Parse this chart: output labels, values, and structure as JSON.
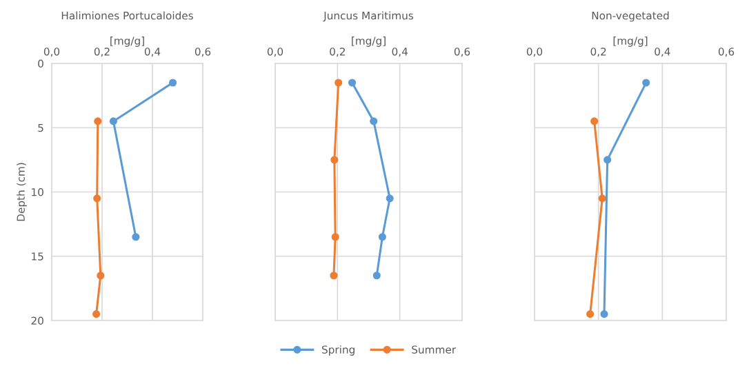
{
  "chart_data": [
    {
      "type": "line",
      "title": "Halimiones Portucaloides",
      "xlabel": "[mg/g]",
      "ylabel": "Depth (cm)",
      "xlim": [
        0,
        0.6
      ],
      "xticks": [
        {
          "value": 0,
          "label": "0,0"
        },
        {
          "value": 0.2,
          "label": "0,2"
        },
        {
          "value": 0.4,
          "label": "0,4"
        },
        {
          "value": 0.6,
          "label": "0,6"
        }
      ],
      "ylim": [
        20,
        0
      ],
      "yticks": [
        0,
        5,
        10,
        15,
        20
      ],
      "grid": true,
      "marker": "circle",
      "line_style": "solid",
      "series": [
        {
          "color": "#5b9bd5",
          "x": [
            0.481,
            0.245,
            0.334
          ],
          "values": [
            1.5,
            4.5,
            13.5
          ]
        },
        {
          "color": "#ed7d31",
          "x": [
            0.183,
            0.18,
            0.194,
            0.177
          ],
          "values": [
            4.5,
            10.5,
            16.5,
            19.5
          ]
        }
      ]
    },
    {
      "type": "line",
      "title": "Juncus Maritimus",
      "xlabel": "[mg/g]",
      "xlim": [
        0,
        0.6
      ],
      "xticks": [
        {
          "value": 0,
          "label": "0,0"
        },
        {
          "value": 0.2,
          "label": "0,2"
        },
        {
          "value": 0.4,
          "label": "0,4"
        },
        {
          "value": 0.6,
          "label": "0,6"
        }
      ],
      "ylim": [
        20,
        0
      ],
      "yticks": [
        0,
        5,
        10,
        15,
        20
      ],
      "tick_labels": "x",
      "grid": true,
      "marker": "circle",
      "line_style": "solid",
      "legend": "bottom",
      "series": [
        {
          "name": "Spring",
          "color": "#5b9bd5",
          "x": [
            0.247,
            0.316,
            0.368,
            0.344,
            0.326
          ],
          "values": [
            1.5,
            4.5,
            10.5,
            13.5,
            16.5
          ]
        },
        {
          "name": "Summer",
          "color": "#ed7d31",
          "x": [
            0.203,
            0.19,
            0.193,
            0.188
          ],
          "values": [
            1.5,
            7.5,
            13.5,
            16.5
          ]
        }
      ]
    },
    {
      "type": "line",
      "title": "Non-vegetated",
      "xlabel": "[mg/g]",
      "xlim": [
        0,
        0.6
      ],
      "xticks": [
        {
          "value": 0,
          "label": "0,0"
        },
        {
          "value": 0.2,
          "label": "0,2"
        },
        {
          "value": 0.4,
          "label": "0,4"
        },
        {
          "value": 0.6,
          "label": "0,6"
        }
      ],
      "ylim": [
        20,
        0
      ],
      "yticks": [
        0,
        5,
        10,
        15,
        20
      ],
      "tick_labels": "x",
      "grid": true,
      "marker": "circle",
      "line_style": "solid",
      "series": [
        {
          "color": "#5b9bd5",
          "x": [
            0.349,
            0.228,
            0.218
          ],
          "values": [
            1.5,
            7.5,
            19.5
          ]
        },
        {
          "color": "#ed7d31",
          "x": [
            0.187,
            0.212,
            0.174
          ],
          "values": [
            4.5,
            10.5,
            19.5
          ]
        }
      ]
    }
  ]
}
